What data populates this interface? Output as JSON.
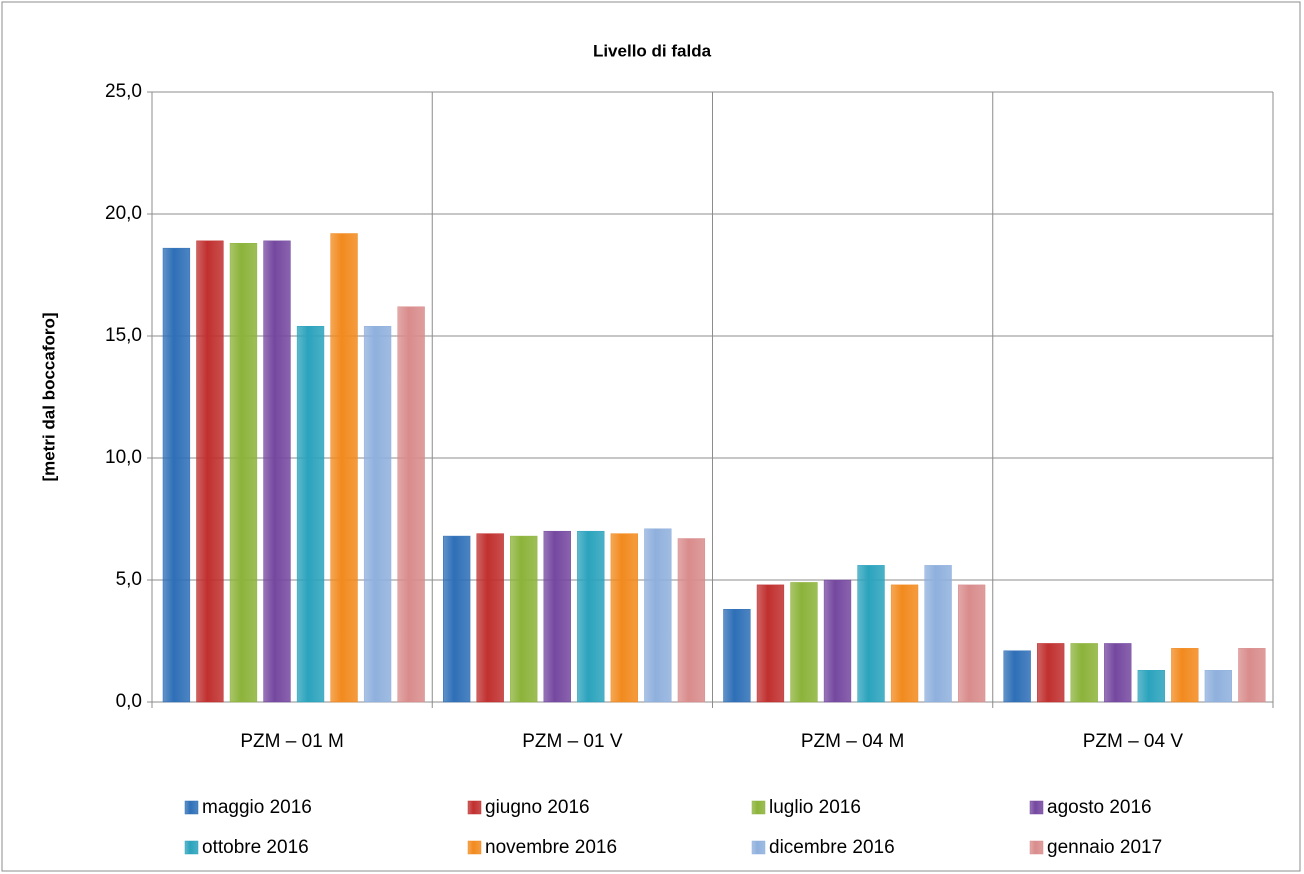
{
  "chart_data": {
    "type": "bar",
    "title": "Livello di falda",
    "y_label": "[metri dal boccaforo]",
    "categories": [
      "PZM – 01 M",
      "PZM – 01 V",
      "PZM – 04 M",
      "PZM – 04 V"
    ],
    "series": [
      {
        "name": "maggio 2016",
        "color": "#2e6fb7",
        "values": [
          18.6,
          6.8,
          3.8,
          2.1
        ]
      },
      {
        "name": "giugno 2016",
        "color": "#c0302f",
        "values": [
          18.9,
          6.9,
          4.8,
          2.4
        ]
      },
      {
        "name": "luglio 2016",
        "color": "#8cb33a",
        "values": [
          18.8,
          6.8,
          4.9,
          2.4
        ]
      },
      {
        "name": "agosto 2016",
        "color": "#7548a0",
        "values": [
          18.9,
          7.0,
          5.0,
          2.4
        ]
      },
      {
        "name": "ottobre 2016",
        "color": "#2ba3bd",
        "values": [
          15.4,
          7.0,
          5.6,
          1.3
        ]
      },
      {
        "name": "novembre 2016",
        "color": "#f28a1e",
        "values": [
          19.2,
          6.9,
          4.8,
          2.2
        ]
      },
      {
        "name": "dicembre 2016",
        "color": "#8fb0dd",
        "values": [
          15.4,
          7.1,
          5.6,
          1.3
        ]
      },
      {
        "name": "gennaio 2017",
        "color": "#d98c8c",
        "values": [
          16.2,
          6.7,
          4.8,
          2.2
        ]
      }
    ],
    "ylim": [
      0,
      25
    ],
    "yticks": [
      {
        "value": 0,
        "label": "0,0"
      },
      {
        "value": 5,
        "label": "5,0"
      },
      {
        "value": 10,
        "label": "10,0"
      },
      {
        "value": 15,
        "label": "15,0"
      },
      {
        "value": 20,
        "label": "20,0"
      },
      {
        "value": 25,
        "label": "25,0"
      }
    ],
    "grid": true,
    "legend": "bottom"
  }
}
